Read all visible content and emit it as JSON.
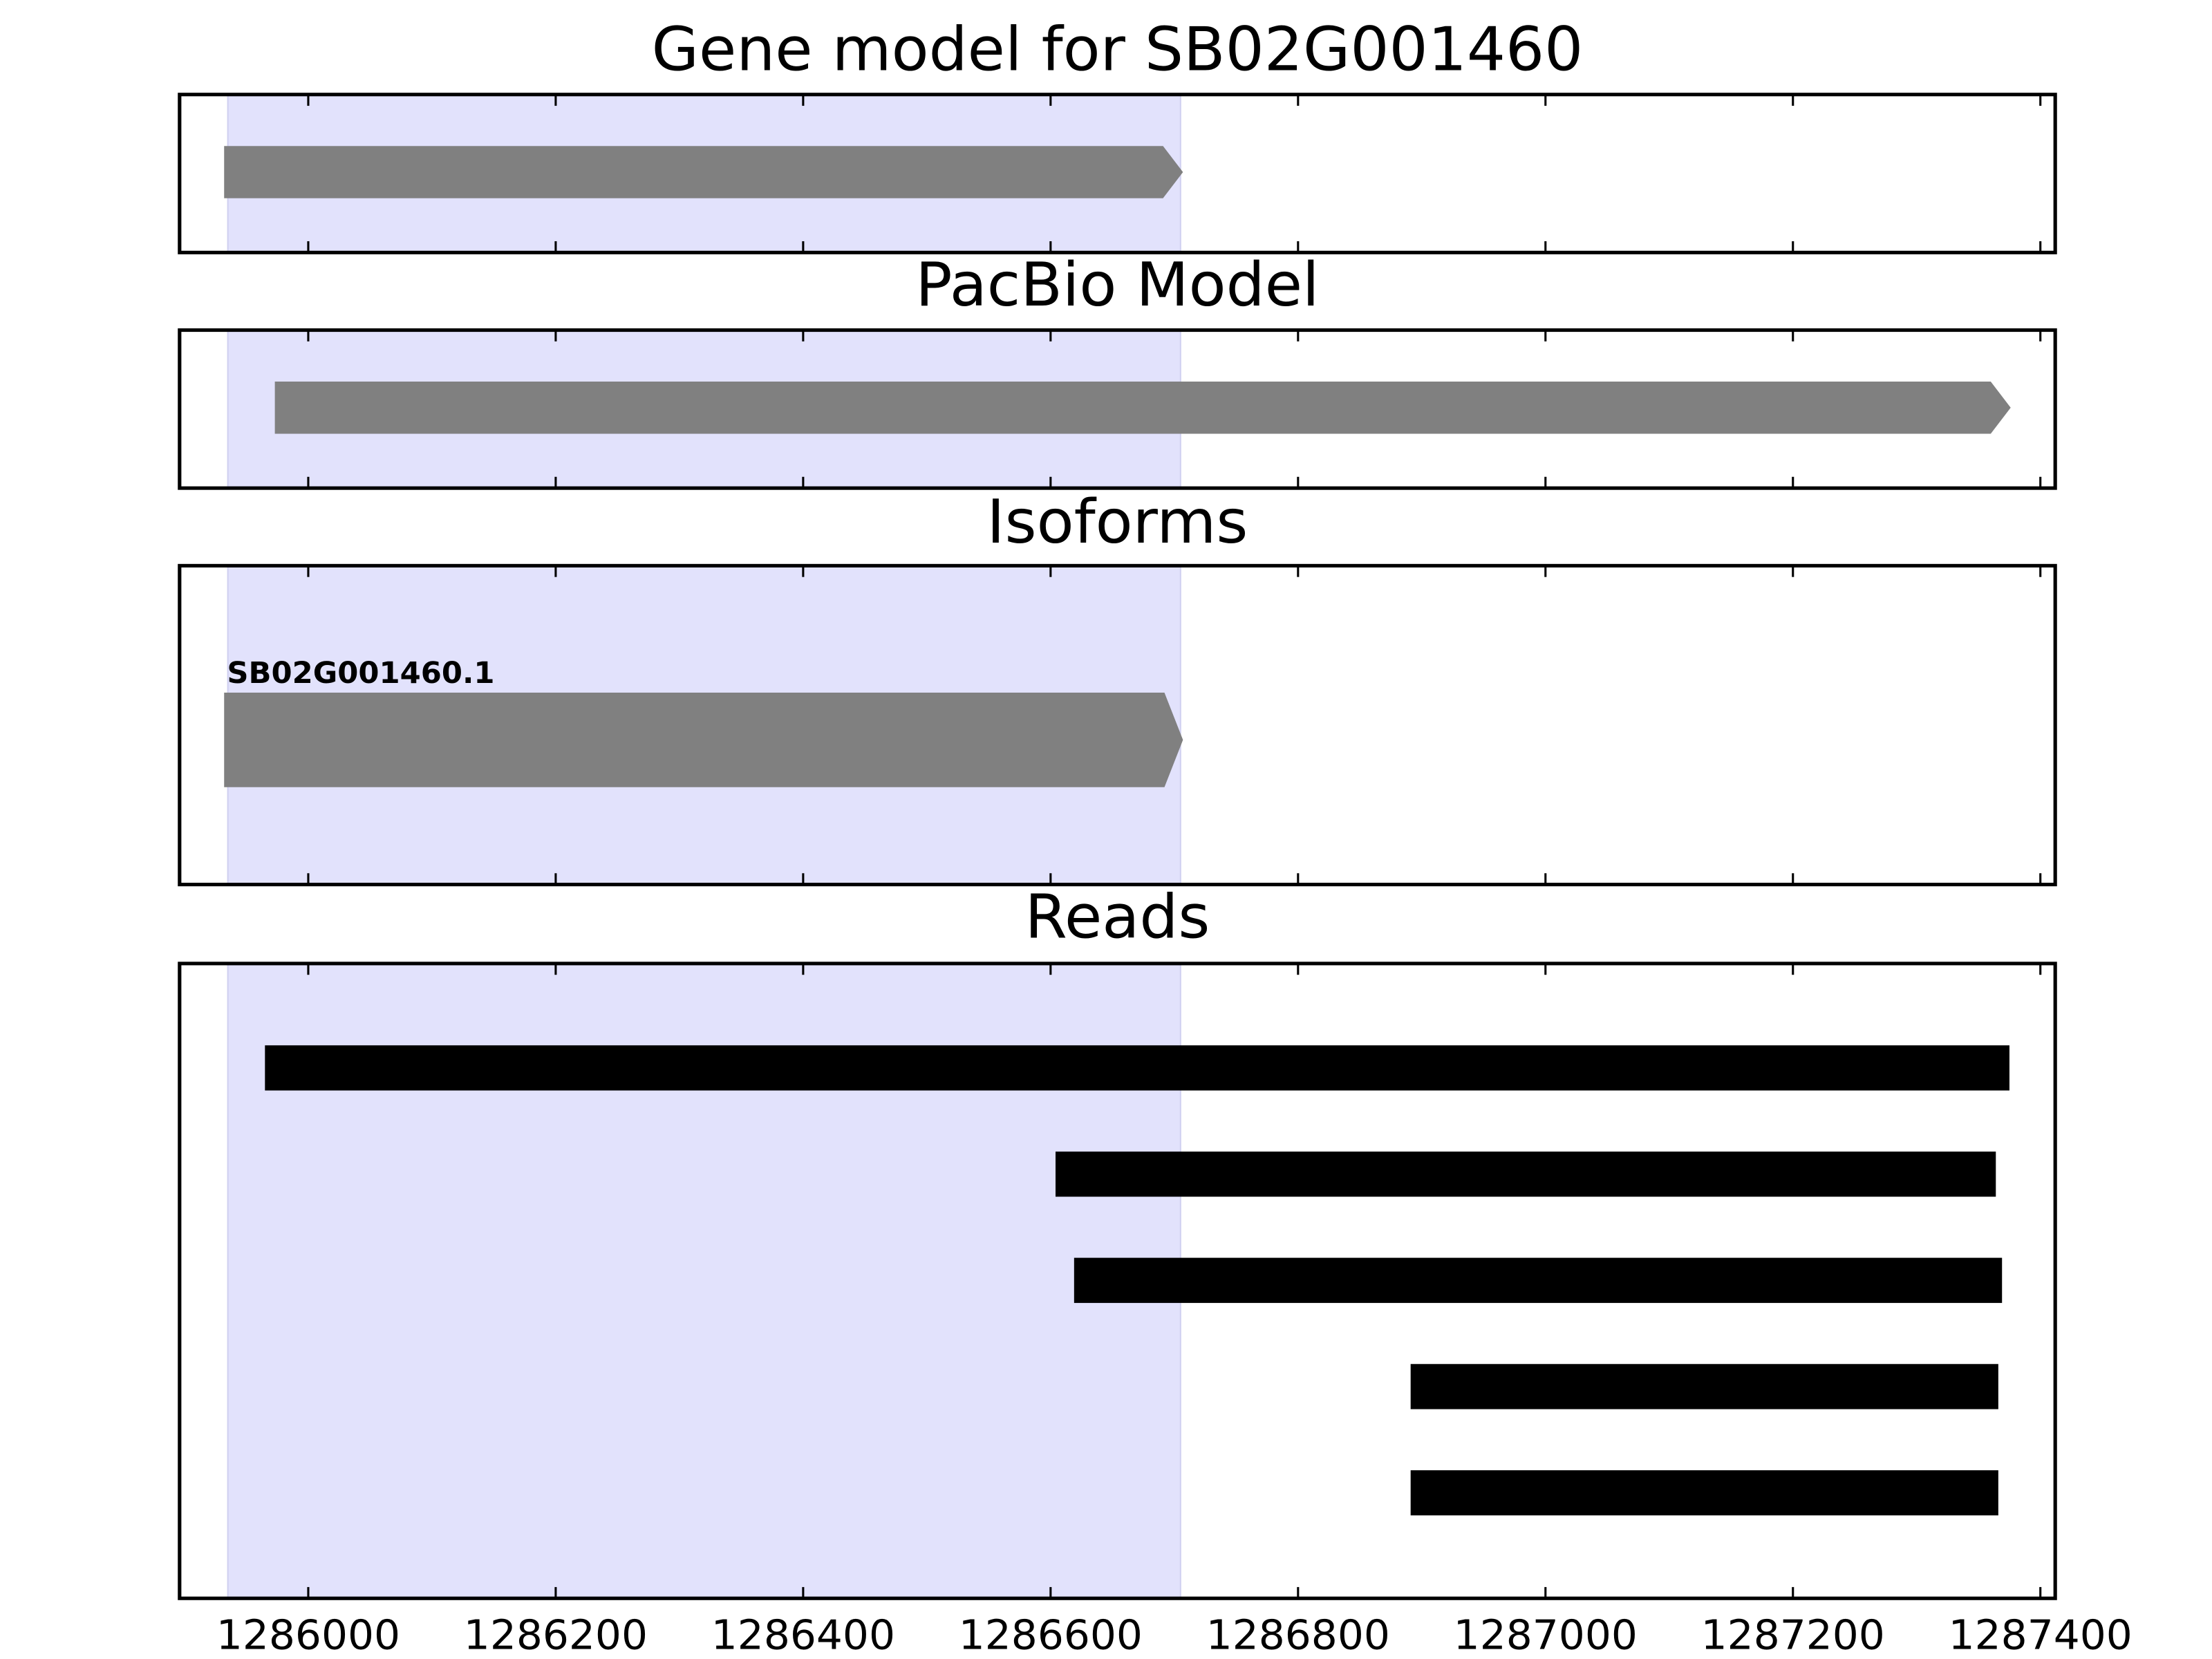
{
  "chart_data": [
    {
      "type": "gene-track",
      "title": "Gene model for SB02G001460",
      "xlim": [
        1285896,
        1287412
      ],
      "xticks": [
        1286000,
        1286200,
        1286400,
        1286600,
        1286800,
        1287000,
        1287200,
        1287400
      ],
      "highlight": [
        1285935,
        1286705
      ],
      "highlight_color": "#e2e2fc",
      "color": "#808080",
      "arrow": true,
      "features": [
        {
          "start": 1285932,
          "end": 1286707
        }
      ]
    },
    {
      "type": "gene-track",
      "title": "PacBio Model",
      "xlim": [
        1285896,
        1287412
      ],
      "xticks": [
        1286000,
        1286200,
        1286400,
        1286600,
        1286800,
        1287000,
        1287200,
        1287400
      ],
      "highlight": [
        1285935,
        1286705
      ],
      "highlight_color": "#e2e2fc",
      "color": "#808080",
      "arrow": true,
      "features": [
        {
          "start": 1285973,
          "end": 1287376
        }
      ]
    },
    {
      "type": "gene-track",
      "title": "Isoforms",
      "xlim": [
        1285896,
        1287412
      ],
      "xticks": [
        1286000,
        1286200,
        1286400,
        1286600,
        1286800,
        1287000,
        1287200,
        1287400
      ],
      "highlight": [
        1285935,
        1286705
      ],
      "highlight_color": "#e2e2fc",
      "color": "#808080",
      "arrow": true,
      "features": [
        {
          "name": "SB02G001460.1",
          "start": 1285932,
          "end": 1286707
        }
      ]
    },
    {
      "type": "reads",
      "title": "Reads",
      "xlim": [
        1285896,
        1287412
      ],
      "xticks": [
        1286000,
        1286200,
        1286400,
        1286600,
        1286800,
        1287000,
        1287200,
        1287400
      ],
      "highlight": [
        1285935,
        1286705
      ],
      "highlight_color": "#e2e2fc",
      "color": "#000000",
      "features": [
        {
          "start": 1285965,
          "end": 1287375
        },
        {
          "start": 1286604,
          "end": 1287364
        },
        {
          "start": 1286619,
          "end": 1287369
        },
        {
          "start": 1286891,
          "end": 1287366
        },
        {
          "start": 1286891,
          "end": 1287366
        }
      ]
    }
  ]
}
